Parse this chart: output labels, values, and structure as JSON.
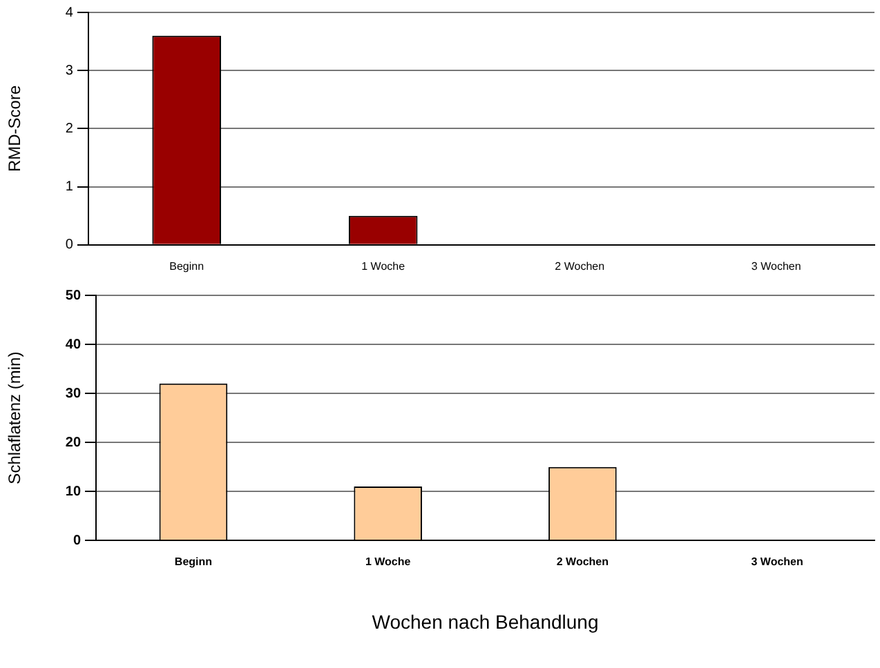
{
  "chart_data": [
    {
      "type": "bar",
      "ylabel": "RMD-Score",
      "categories": [
        "Beginn",
        "1 Woche",
        "2 Wochen",
        "3 Wochen"
      ],
      "values": [
        3.6,
        0.5,
        0,
        0
      ],
      "color": "#990000",
      "ylim": [
        0,
        4
      ],
      "yticks": [
        0,
        1,
        2,
        3,
        4
      ],
      "grid": "y",
      "legend": false
    },
    {
      "type": "bar",
      "ylabel": "Schlaflatenz (min)",
      "xlabel": "Wochen nach Behandlung",
      "categories": [
        "Beginn",
        "1 Woche",
        "2 Wochen",
        "3 Wochen"
      ],
      "values": [
        32,
        11,
        15,
        0
      ],
      "color": "#ffcc99",
      "ylim": [
        0,
        50
      ],
      "yticks": [
        0,
        10,
        20,
        30,
        40,
        50
      ],
      "grid": "y",
      "legend": false
    }
  ]
}
